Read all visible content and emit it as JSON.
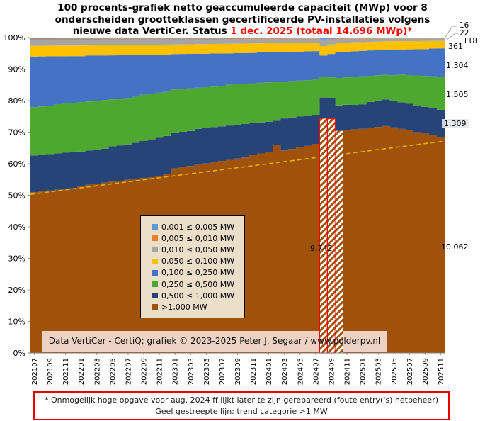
{
  "page": {
    "background": "#FFFFFF"
  },
  "title": {
    "line1": "100 procents-grafiek netto geaccumuleerde capaciteit (MWp) voor 8",
    "line2": "onderscheiden grootteklassen gecertificeerde PV-installaties volgens",
    "line3_prefix": "nieuwe data VertiCer. Status ",
    "line3_highlight": "1 dec. 2025 (totaal 14.696 MWp)*",
    "highlight_color": "#FF0000"
  },
  "attribution": {
    "text": "Data VertiCer - CertiQ; grafiek © 2023-2025 Peter J. Segaar / www.polderpv.nl"
  },
  "footnote": {
    "line1": "* Onmogelijk hoge opgave voor aug. 2024 ff lijkt later te zijn gerepareerd (foute entry('s) netbeheer)",
    "line2": "Geel gestreepte lijn: trend categorie >1 MW",
    "border_color": "#E60000"
  },
  "chart_data": {
    "type": "area",
    "stacking": "percent-100",
    "x_start": "202107",
    "x_end": "202511",
    "months_total": 53,
    "x_ticks": [
      "202107",
      "202109",
      "202111",
      "202201",
      "202203",
      "202205",
      "202207",
      "202209",
      "202211",
      "202301",
      "202303",
      "202305",
      "202307",
      "202309",
      "202311",
      "202401",
      "202403",
      "202405",
      "202407",
      "202409",
      "202411",
      "202501",
      "202503",
      "202505",
      "202507",
      "202509",
      "202511"
    ],
    "y_ticks": [
      "0%",
      "10%",
      "20%",
      "30%",
      "40%",
      "50%",
      "60%",
      "70%",
      "80%",
      "90%",
      "100%"
    ],
    "legend_position": "center-left-overlay",
    "series": [
      {
        "label": "0,001 ≤  0,005 MW",
        "color": "#5B9BD5",
        "end_value_label": "16",
        "cum_top_keyframes": [
          [
            0,
            100
          ],
          [
            52,
            100
          ]
        ]
      },
      {
        "label": "0,005 ≤  0,010 MW",
        "color": "#ED7D31",
        "end_value_label": "22",
        "cum_top_keyframes": [
          [
            0,
            99.55
          ],
          [
            12,
            99.6
          ],
          [
            24,
            99.65
          ],
          [
            36,
            99.75
          ],
          [
            37,
            99.4
          ],
          [
            39,
            99.7
          ],
          [
            45,
            99.85
          ],
          [
            52,
            99.89
          ]
        ]
      },
      {
        "label": "0,010 ≤  0,050 MW",
        "color": "#A5A5A5",
        "end_value_label": "118",
        "cum_top_keyframes": [
          [
            0,
            99.3
          ],
          [
            12,
            99.35
          ],
          [
            24,
            99.45
          ],
          [
            36,
            99.6
          ],
          [
            37,
            99.2
          ],
          [
            39,
            99.55
          ],
          [
            45,
            99.7
          ],
          [
            52,
            99.75
          ]
        ]
      },
      {
        "label": "0,050 ≤  0,100 MW",
        "color": "#FFC000",
        "end_value_label": "361",
        "cum_top_keyframes": [
          [
            0,
            97.4
          ],
          [
            12,
            97.6
          ],
          [
            24,
            98.0
          ],
          [
            36,
            98.4
          ],
          [
            37,
            97.3
          ],
          [
            39,
            98.3
          ],
          [
            45,
            98.8
          ],
          [
            52,
            98.95
          ]
        ]
      },
      {
        "label": "0,100 ≤  0,250 MW",
        "color": "#4472C4",
        "end_value_label": "1.304",
        "cum_top_keyframes": [
          [
            0,
            94.0
          ],
          [
            12,
            94.4
          ],
          [
            24,
            95.0
          ],
          [
            36,
            95.7
          ],
          [
            37,
            94.3
          ],
          [
            39,
            95.3
          ],
          [
            45,
            96.2
          ],
          [
            52,
            96.5
          ]
        ]
      },
      {
        "label": "0,250 ≤  0,500 MW",
        "color": "#4EA72E",
        "end_value_label": "1.505",
        "cum_top_keyframes": [
          [
            0,
            78.0
          ],
          [
            6,
            79.5
          ],
          [
            12,
            81.0
          ],
          [
            17,
            82.8
          ],
          [
            18,
            83.5
          ],
          [
            24,
            84.8
          ],
          [
            30,
            85.8
          ],
          [
            36,
            86.8
          ],
          [
            37,
            87.6
          ],
          [
            39,
            87.2
          ],
          [
            45,
            88.3
          ],
          [
            52,
            87.6
          ]
        ]
      },
      {
        "label": "0,500 ≤  1,000 MW",
        "color": "#264478",
        "end_value_label": "1.309",
        "cum_top_keyframes": [
          [
            0,
            62.5
          ],
          [
            6,
            64.0
          ],
          [
            12,
            66.0
          ],
          [
            17,
            68.9
          ],
          [
            18,
            70.0
          ],
          [
            24,
            71.8
          ],
          [
            30,
            73.5
          ],
          [
            36,
            75.5
          ],
          [
            37,
            81.0
          ],
          [
            38,
            80.9
          ],
          [
            39,
            78.5
          ],
          [
            42,
            79.0
          ],
          [
            45,
            80.3
          ],
          [
            48,
            79.0
          ],
          [
            52,
            77.3
          ]
        ]
      },
      {
        "label": ">1,000 MW",
        "color": "#A0520A",
        "end_value_label": "10.062",
        "cum_top_keyframes": [
          [
            0,
            51.0
          ],
          [
            6,
            52.8
          ],
          [
            12,
            55.0
          ],
          [
            17,
            56.6
          ],
          [
            18,
            58.3
          ],
          [
            24,
            61.0
          ],
          [
            30,
            63.5
          ],
          [
            31,
            65.8
          ],
          [
            32,
            64.2
          ],
          [
            36,
            66.3
          ],
          [
            37,
            74.4
          ],
          [
            38,
            74.3
          ],
          [
            39,
            70.4
          ],
          [
            42,
            71.0
          ],
          [
            45,
            72.0
          ],
          [
            48,
            70.8
          ],
          [
            52,
            68.4
          ]
        ]
      }
    ],
    "trend_line": {
      "description": "Geel gestreepte lijn: trend categorie >1 MW",
      "color": "#DDB600",
      "start_pct": 50.3,
      "end_pct": 67.2
    },
    "anomaly": {
      "hatched_months": [
        "202408",
        "202409",
        "202410"
      ],
      "value_label": "9.742",
      "outline_color": "#FF0000",
      "hatch_fill": "#A0520A"
    }
  }
}
